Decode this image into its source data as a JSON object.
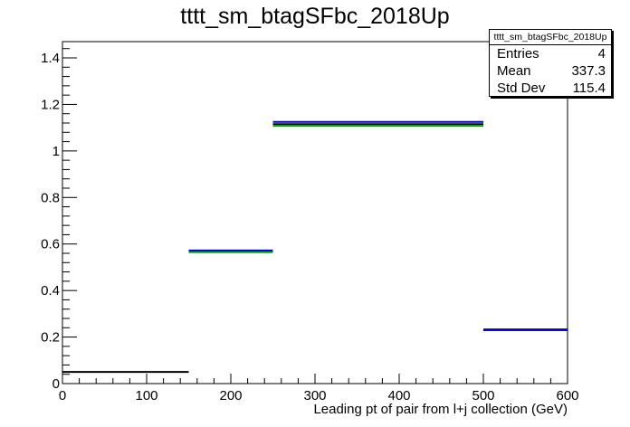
{
  "chart_data": {
    "type": "histogram",
    "title": "tttt_sm_btagSFbc_2018Up",
    "xlabel": "Leading pt of pair from l+j collection (GeV)",
    "ylabel": "",
    "xlim": [
      0,
      600
    ],
    "ylim": [
      0,
      1.47
    ],
    "x_ticks": [
      0,
      100,
      200,
      300,
      400,
      500,
      600
    ],
    "y_ticks": [
      0,
      0.2,
      0.4,
      0.6,
      0.8,
      1,
      1.2,
      1.4
    ],
    "x_tick_labels": [
      "0",
      "100",
      "200",
      "300",
      "400",
      "500",
      "600"
    ],
    "y_tick_labels": [
      "0",
      "0.2",
      "0.4",
      "0.6",
      "0.8",
      "1",
      "1.2",
      "1.4"
    ],
    "series": [
      {
        "color": "#000000",
        "bins": [
          {
            "x0": 0,
            "x1": 150,
            "y": 0.05
          },
          {
            "x0": 150,
            "x1": 250,
            "y": 0.57
          },
          {
            "x0": 250,
            "x1": 500,
            "y": 1.115
          },
          {
            "x0": 500,
            "x1": 600,
            "y": 0.23
          }
        ]
      },
      {
        "color": "#0000cc",
        "bins": [
          {
            "x0": 150,
            "x1": 250,
            "y": 0.572
          },
          {
            "x0": 250,
            "x1": 500,
            "y": 1.125
          },
          {
            "x0": 500,
            "x1": 600,
            "y": 0.233
          }
        ]
      },
      {
        "color": "#00aa00",
        "bins": [
          {
            "x0": 150,
            "x1": 250,
            "y": 0.565
          },
          {
            "x0": 250,
            "x1": 500,
            "y": 1.108
          }
        ]
      }
    ],
    "grid": false,
    "legend": "none"
  },
  "statbox": {
    "title": "tttt_sm_btagSFbc_2018Up",
    "rows": [
      {
        "label": "Entries",
        "value": "4"
      },
      {
        "label": "Mean",
        "value": "337.3"
      },
      {
        "label": "Std Dev",
        "value": "115.4"
      }
    ]
  }
}
